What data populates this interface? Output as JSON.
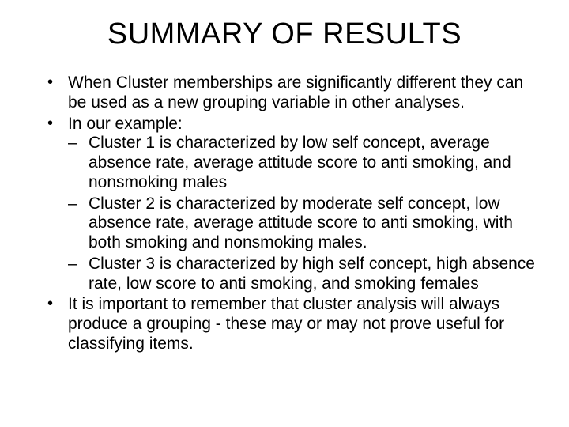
{
  "slide": {
    "title": "SUMMARY OF RESULTS",
    "bullets": [
      {
        "text": "When Cluster memberships are significantly different they can be used as a new grouping variable in other analyses."
      },
      {
        "text": "In our example:",
        "sub": [
          "Cluster 1 is characterized by low self concept, average absence rate, average attitude score to anti smoking, and nonsmoking males",
          "Cluster 2 is characterized by moderate self concept, low absence rate, average attitude score to anti smoking, with both smoking and nonsmoking males.",
          "Cluster 3 is characterized by high self concept, high absence rate, low score to anti smoking,  and smoking females"
        ]
      },
      {
        "text": "It is important to remember that cluster analysis will always produce a grouping - these may or may not prove useful for classifying items."
      }
    ],
    "colors": {
      "background": "#ffffff",
      "text": "#000000"
    },
    "typography": {
      "title_fontsize": 38,
      "body_fontsize": 21,
      "font_family": "Arial"
    }
  }
}
